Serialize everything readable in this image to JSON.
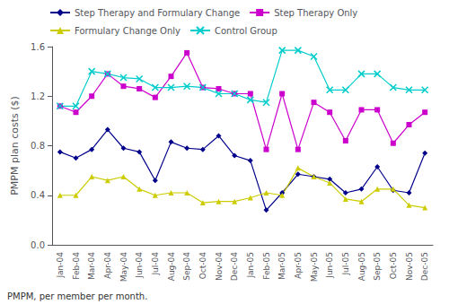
{
  "chart_data": {
    "type": "line",
    "categories": [
      "Jan-04",
      "Feb-04",
      "Mar-04",
      "Apr-04",
      "May-04",
      "Jun-04",
      "Jul-04",
      "Aug-04",
      "Sep-04",
      "Oct-04",
      "Nov-04",
      "Dec-04",
      "Jan-05",
      "Feb-05",
      "Mar-05",
      "Apr-05",
      "May-05",
      "Jun-05",
      "Jul-05",
      "Aug-05",
      "Sep-05",
      "Oct-05",
      "Nov-05",
      "Dec-05"
    ],
    "series": [
      {
        "name": "Step Therapy and Formulary Change",
        "color": "#00008B",
        "marker": "diamond",
        "values": [
          0.75,
          0.7,
          0.77,
          0.93,
          0.78,
          0.75,
          0.52,
          0.83,
          0.78,
          0.77,
          0.88,
          0.72,
          0.68,
          0.28,
          0.42,
          0.57,
          0.55,
          0.53,
          0.42,
          0.45,
          0.63,
          0.44,
          0.42,
          0.74
        ]
      },
      {
        "name": "Step Therapy Only",
        "color": "#CC00CC",
        "marker": "square",
        "values": [
          1.12,
          1.07,
          1.2,
          1.38,
          1.28,
          1.26,
          1.19,
          1.36,
          1.55,
          1.27,
          1.26,
          1.22,
          1.22,
          0.77,
          1.22,
          0.77,
          1.15,
          1.07,
          0.84,
          1.09,
          1.09,
          0.82,
          0.97,
          1.07
        ]
      },
      {
        "name": "Formulary Change Only",
        "color": "#CCCC00",
        "marker": "triangle",
        "values": [
          0.4,
          0.4,
          0.55,
          0.52,
          0.55,
          0.45,
          0.4,
          0.42,
          0.42,
          0.34,
          0.35,
          0.35,
          0.38,
          0.42,
          0.4,
          0.62,
          0.55,
          0.5,
          0.37,
          0.35,
          0.45,
          0.45,
          0.32,
          0.3
        ]
      },
      {
        "name": "Control Group",
        "color": "#00CCCC",
        "marker": "x",
        "values": [
          1.12,
          1.12,
          1.4,
          1.38,
          1.35,
          1.34,
          1.27,
          1.27,
          1.28,
          1.27,
          1.22,
          1.22,
          1.17,
          1.15,
          1.57,
          1.57,
          1.52,
          1.25,
          1.25,
          1.38,
          1.38,
          1.27,
          1.25,
          1.25
        ]
      }
    ],
    "ylabel": "PMPM plan costs ($)",
    "ylim": [
      0.0,
      1.6
    ],
    "yticks": [
      {
        "value": 0.0,
        "label": "0.0"
      },
      0.4,
      0.8,
      1.2,
      1.6
    ],
    "annotations": [
      "PMPM, per member per month."
    ],
    "grid": false,
    "legend": "upper left"
  }
}
